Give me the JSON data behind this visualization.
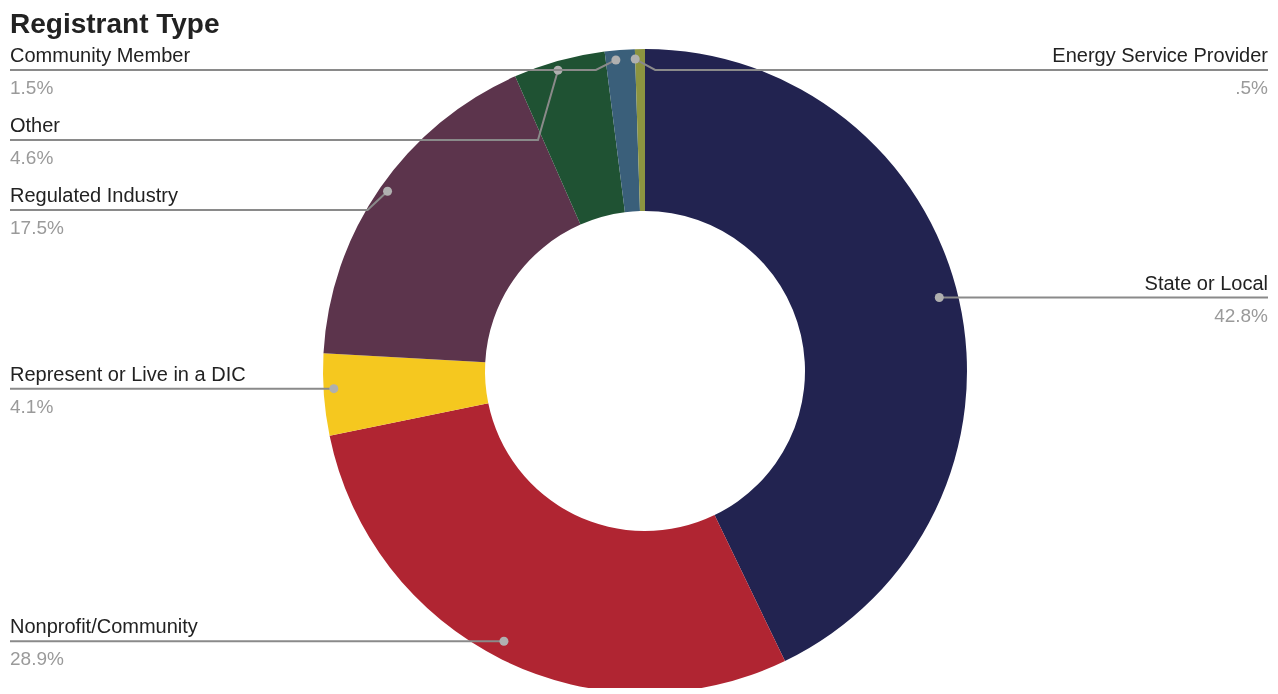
{
  "chart_data": {
    "type": "donut",
    "title": "Registrant Type",
    "categories": [
      "State or Local",
      "Nonprofit/Community",
      "Represent or Live in a DIC",
      "Regulated Industry",
      "Other",
      "Community Member",
      "Energy Service Provider"
    ],
    "values": [
      42.8,
      28.9,
      4.1,
      17.5,
      4.6,
      1.5,
      0.5
    ],
    "value_labels": [
      "42.8%",
      "28.9%",
      "4.1%",
      "17.5%",
      "4.6%",
      "1.5%",
      ".5%"
    ],
    "colors": [
      "#222350",
      "#b02532",
      "#f5c81f",
      "#5c344c",
      "#1f5233",
      "#3a5f7a",
      "#8c9440"
    ],
    "legend": false
  }
}
